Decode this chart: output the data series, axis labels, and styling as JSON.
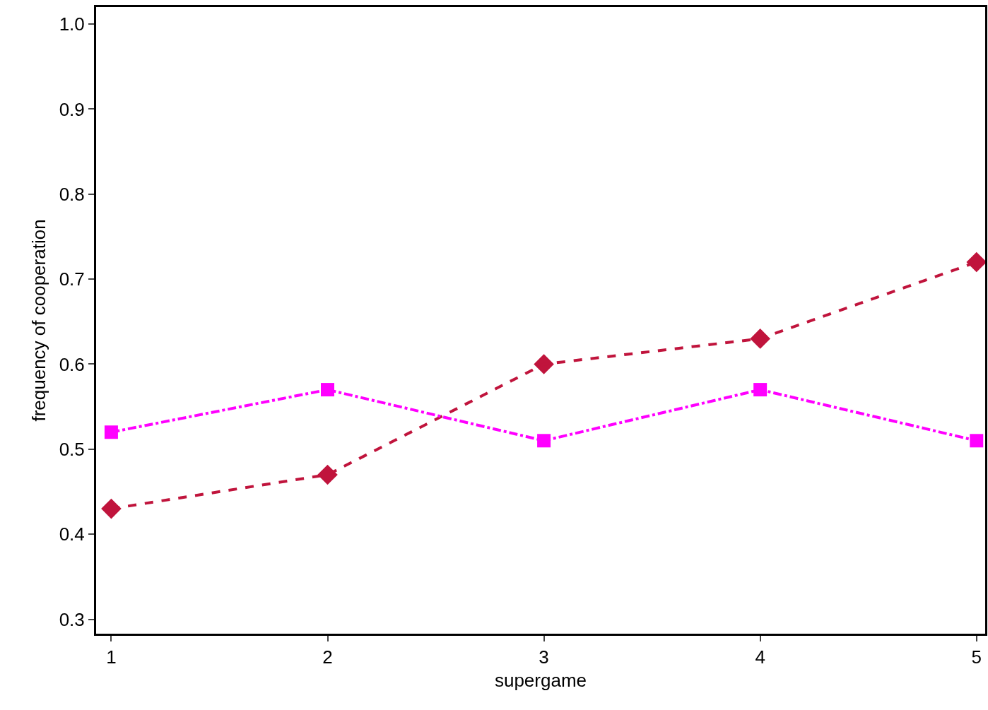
{
  "chart_data": {
    "type": "line",
    "xlabel": "supergame",
    "ylabel": "frequency of cooperation",
    "x": [
      1,
      2,
      3,
      4,
      5
    ],
    "series": [
      {
        "color": "#c0143c",
        "values": [
          0.43,
          0.47,
          0.6,
          0.63,
          0.72
        ],
        "marker": "diamond",
        "line_style": "dashed"
      },
      {
        "color": "#ff00ff",
        "values": [
          0.52,
          0.57,
          0.51,
          0.57,
          0.51
        ],
        "marker": "square",
        "line_style": "dashdot"
      }
    ],
    "xlim": [
      0.93,
      5.04
    ],
    "xticks": [
      1,
      2,
      3,
      4,
      5
    ],
    "ylim": [
      0.283,
      1.02
    ],
    "yticks": [
      {
        "value": 0.3,
        "label": "0.3"
      },
      {
        "value": 0.4,
        "label": "0.4"
      },
      {
        "value": 0.5,
        "label": "0.5"
      },
      {
        "value": 0.6,
        "label": "0.6"
      },
      {
        "value": 0.7,
        "label": "0.7"
      },
      {
        "value": 0.8,
        "label": "0.8"
      },
      {
        "value": 0.9,
        "label": "0.9"
      },
      {
        "value": 1.0,
        "label": "1.0"
      }
    ],
    "grid": false
  }
}
